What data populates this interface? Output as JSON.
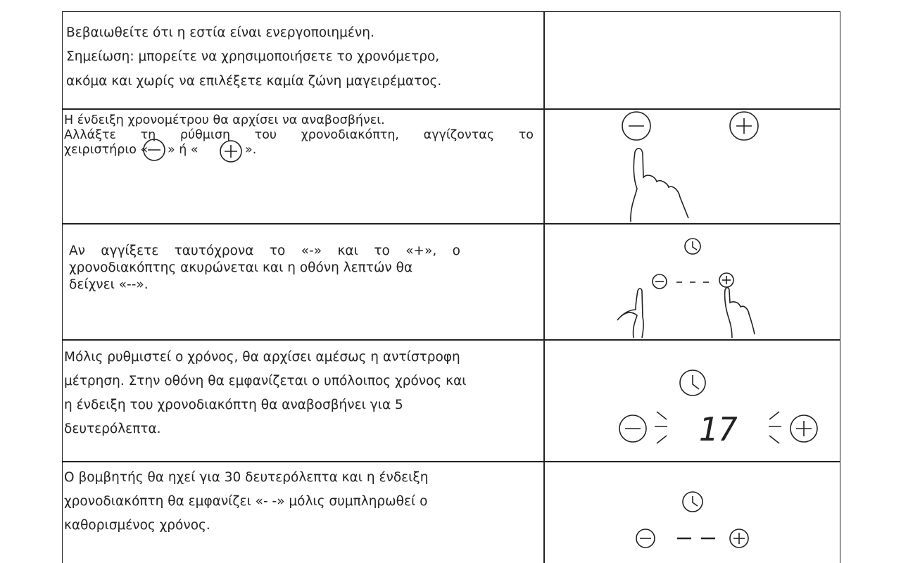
{
  "rows": [
    {
      "lines": [
        "Βεβαιωθείτε ότι η εστία είναι ενεργοποιημένη.",
        "Σημείωση: μπορείτε να χρησιμοποιήσετε το χρονόμετρο,",
        "ακόμα και χωρίς να επιλέξετε καμία ζώνη μαγειρέματος."
      ]
    },
    {
      "lines": [
        "Η ένδειξη χρονομέτρου θα αρχίσει να αναβοσβήνει.",
        "Αλλάξτε τη ρύθμιση του χρονοδιακόπτη, αγγίζοντας το"
      ],
      "inline": [
        "χειριστήριο «",
        "» ή «",
        "»."
      ]
    },
    {
      "lines": [
        "Αν αγγίξετε ταυτόχρονα το «-» και το «+», ο",
        "χρονοδιακόπτης ακυρώνεται και η οθόνη λεπτών θα",
        "δείχνει «--»."
      ]
    },
    {
      "lines": [
        "Μόλις ρυθμιστεί ο χρόνος, θα αρχίσει αμέσως η αντίστροφη",
        "μέτρηση. Στην οθόνη θα εμφανίζεται ο υπόλοιπος χρόνος και",
        "η ένδειξη του χρονοδιακόπτη θα αναβοσβήνει για 5",
        "δευτερόλεπτα."
      ],
      "display": "17"
    },
    {
      "lines": [
        "Ο βομβητής θα ηχεί για 30 δευτερόλεπτα και η ένδειξη",
        "χρονοδιακόπτη θα εμφανίζει «- -» μόλις συμπληρωθεί ο",
        "καθορισμένος χρόνος."
      ]
    }
  ]
}
